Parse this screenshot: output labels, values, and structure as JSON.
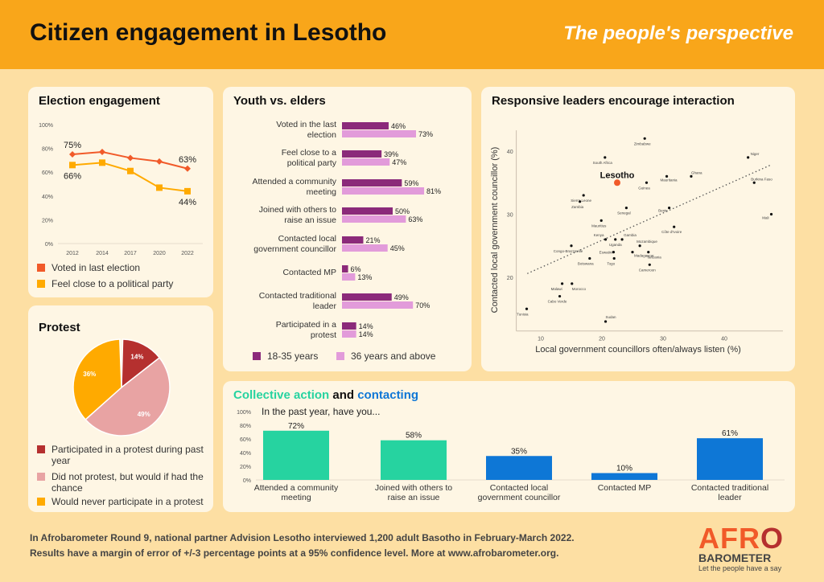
{
  "header": {
    "title": "Citizen engagement in Lesotho",
    "subtitle": "The people's perspective"
  },
  "colors": {
    "header": "#F9A61A",
    "background": "#FDDFA3",
    "panel": "#FEF6E4",
    "voted": "#F15A29",
    "party": "#FFAA00",
    "youth": "#8B2A7A",
    "elders": "#E29BDA",
    "protest_red": "#B5302F",
    "protest_pink": "#E8A3A3",
    "protest_orange": "#FFAA00",
    "green": "#26D3A0",
    "blue": "#0E77D6"
  },
  "election": {
    "title": "Election engagement",
    "chart_data": {
      "type": "line",
      "categories": [
        "2012",
        "2014",
        "2017",
        "2020",
        "2022"
      ],
      "ylim": [
        0,
        100
      ],
      "yticks": [
        "0%",
        "20%",
        "40%",
        "60%",
        "80%",
        "100%"
      ],
      "series": [
        {
          "name": "Voted in last election",
          "values": [
            75,
            77,
            72,
            69,
            63
          ]
        },
        {
          "name": "Feel close to a political party",
          "values": [
            66,
            68,
            61,
            47,
            44
          ]
        }
      ],
      "labels": [
        {
          "series": 0,
          "index": 0,
          "text": "75%"
        },
        {
          "series": 0,
          "index": 4,
          "text": "63%"
        },
        {
          "series": 1,
          "index": 0,
          "text": "66%"
        },
        {
          "series": 1,
          "index": 4,
          "text": "44%"
        }
      ],
      "legend": "bottom"
    }
  },
  "protest": {
    "title": "Protest",
    "chart_data": {
      "type": "pie",
      "slices": [
        {
          "name": "Participated in a protest during past year",
          "value": 14,
          "label": "14%"
        },
        {
          "name": "Did not protest, but would if had the chance",
          "value": 49,
          "label": "49%"
        },
        {
          "name": "Would never participate in a protest",
          "value": 36,
          "label": "36%"
        }
      ],
      "legend": "bottom"
    }
  },
  "youth": {
    "title": "Youth vs. elders",
    "chart_data": {
      "type": "bar",
      "orientation": "horizontal",
      "categories": [
        "Voted in the last election",
        "Feel close to a political party",
        "Attended a community meeting",
        "Joined with others to raise an issue",
        "Contacted local government councillor",
        "Contacted MP",
        "Contacted traditional leader",
        "Participated in a protest"
      ],
      "series": [
        {
          "name": "18-35 years",
          "values": [
            46,
            39,
            59,
            50,
            21,
            6,
            49,
            14
          ]
        },
        {
          "name": "36 years and above",
          "values": [
            73,
            47,
            81,
            63,
            45,
            13,
            70,
            14
          ]
        }
      ],
      "legend": "bottom"
    }
  },
  "scatter": {
    "title": "Responsive leaders encourage interaction",
    "chart_data": {
      "type": "scatter",
      "xlabel": "Local government councillors often/always listen (%)",
      "ylabel": "Contacted local government councillor (%)",
      "xlim": [
        6,
        49.6
      ],
      "ylim": [
        11.5,
        43.3
      ],
      "xticks": [
        10,
        20,
        30,
        40
      ],
      "yticks": [
        20,
        30,
        40
      ],
      "highlight": "Lesotho",
      "trendline": [
        [
          7.8,
          20.6
        ],
        [
          47.6,
          37.8
        ]
      ],
      "points": [
        {
          "name": "Zimbabwe",
          "x": 27,
          "y": 42
        },
        {
          "name": "South Africa",
          "x": 20.5,
          "y": 39
        },
        {
          "name": "Lesotho",
          "x": 22.5,
          "y": 35
        },
        {
          "name": "Guinea",
          "x": 27.3,
          "y": 35
        },
        {
          "name": "Mauritania",
          "x": 30.6,
          "y": 36
        },
        {
          "name": "Ghana",
          "x": 34.6,
          "y": 36
        },
        {
          "name": "Niger",
          "x": 43.9,
          "y": 39
        },
        {
          "name": "Burkina Faso",
          "x": 44.9,
          "y": 35
        },
        {
          "name": "Mali",
          "x": 47.7,
          "y": 30
        },
        {
          "name": "Sierra Leone",
          "x": 17,
          "y": 33
        },
        {
          "name": "Zambia",
          "x": 16.4,
          "y": 32
        },
        {
          "name": "Senegal",
          "x": 24,
          "y": 31
        },
        {
          "name": "Benin",
          "x": 31,
          "y": 31
        },
        {
          "name": "Côte d'Ivoire",
          "x": 31.8,
          "y": 28
        },
        {
          "name": "Mauritius",
          "x": 19.9,
          "y": 29
        },
        {
          "name": "Kenya",
          "x": 20.6,
          "y": 26
        },
        {
          "name": "Uganda",
          "x": 22.2,
          "y": 26
        },
        {
          "name": "Gambia",
          "x": 23.3,
          "y": 26
        },
        {
          "name": "Mozambique",
          "x": 26.2,
          "y": 25
        },
        {
          "name": "Congo-Brazzaville",
          "x": 15,
          "y": 25
        },
        {
          "name": "Eswatini",
          "x": 21.9,
          "y": 24
        },
        {
          "name": "Madagascar",
          "x": 25,
          "y": 24
        },
        {
          "name": "Tanzania",
          "x": 27.6,
          "y": 24
        },
        {
          "name": "Botswana",
          "x": 18,
          "y": 23
        },
        {
          "name": "Togo",
          "x": 22,
          "y": 23
        },
        {
          "name": "Cameroon",
          "x": 27.8,
          "y": 22
        },
        {
          "name": "Malawi",
          "x": 13.5,
          "y": 19
        },
        {
          "name": "Morocco",
          "x": 15.1,
          "y": 19
        },
        {
          "name": "Cabo Verde",
          "x": 13.1,
          "y": 17
        },
        {
          "name": "Tunisia",
          "x": 7.7,
          "y": 15
        },
        {
          "name": "Sudan",
          "x": 20.6,
          "y": 13
        }
      ]
    }
  },
  "collective": {
    "title_part1": "Collective action",
    "title_and": " and ",
    "title_part2": "contacting",
    "caption": "In the past year, have you...",
    "chart_data": {
      "type": "bar",
      "categories": [
        "Attended a community meeting",
        "Joined with others to raise an issue",
        "Contacted local government councillor",
        "Contacted MP",
        "Contacted traditional leader"
      ],
      "values": [
        72,
        58,
        35,
        10,
        61
      ],
      "labels": [
        "72%",
        "58%",
        "35%",
        "10%",
        "61%"
      ],
      "colors": [
        "#26D3A0",
        "#26D3A0",
        "#0E77D6",
        "#0E77D6",
        "#0E77D6"
      ],
      "ylim": [
        0,
        100
      ],
      "yticks": [
        "0%",
        "20%",
        "40%",
        "60%",
        "80%",
        "100%"
      ]
    }
  },
  "footer": {
    "line1": "In Afrobarometer Round 9, national partner Advision Lesotho interviewed 1,200 adult Basotho in February-March 2022.",
    "line2": "Results have a margin of error of +/-3 percentage points at a 95% confidence level. More at www.afrobarometer.org."
  },
  "logo": {
    "afro": "AFR",
    "o": "O",
    "barometer": "BAROMETER",
    "tagline": "Let the people have a say"
  }
}
